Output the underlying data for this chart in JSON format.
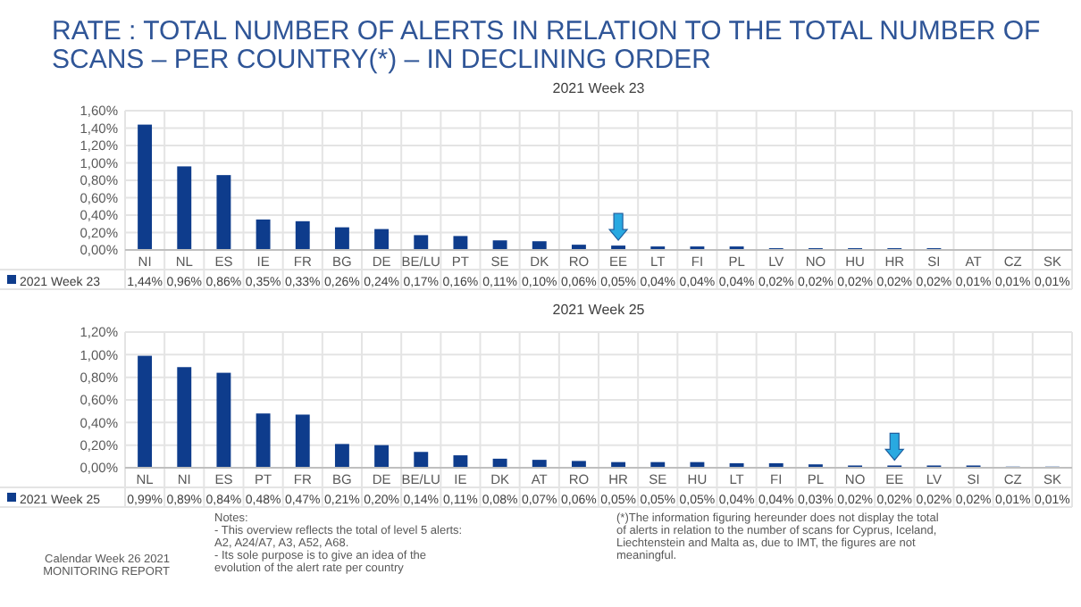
{
  "chart_data": [
    {
      "type": "bar",
      "title": "RATE : TOTAL NUMBER OF ALERTS IN RELATION TO THE TOTAL NUMBER OF SCANS – PER COUNTRY(*) – IN DECLINING ORDER",
      "subtitle": "2021 Week 23",
      "categories": [
        "NI",
        "NL",
        "ES",
        "IE",
        "FR",
        "BG",
        "DE",
        "BE/LU",
        "PT",
        "SE",
        "DK",
        "RO",
        "EE",
        "LT",
        "FI",
        "PL",
        "LV",
        "NO",
        "HU",
        "HR",
        "SI",
        "AT",
        "CZ",
        "SK"
      ],
      "series": [
        {
          "name": "2021 Week 23",
          "color": "#0e3c8c",
          "values": [
            1.44,
            0.96,
            0.86,
            0.35,
            0.33,
            0.26,
            0.24,
            0.17,
            0.16,
            0.11,
            0.1,
            0.06,
            0.05,
            0.04,
            0.04,
            0.04,
            0.02,
            0.02,
            0.02,
            0.02,
            0.02,
            0.01,
            0.01,
            0.01
          ],
          "value_labels": [
            "1,44%",
            "0,96%",
            "0,86%",
            "0,35%",
            "0,33%",
            "0,26%",
            "0,24%",
            "0,17%",
            "0,16%",
            "0,11%",
            "0,10%",
            "0,06%",
            "0,05%",
            "0,04%",
            "0,04%",
            "0,04%",
            "0,02%",
            "0,02%",
            "0,02%",
            "0,02%",
            "0,02%",
            "0,01%",
            "0,01%",
            "0,01%"
          ]
        }
      ],
      "ylim": [
        0,
        1.6
      ],
      "yticks": [
        {
          "value": 0,
          "label": "0,00%"
        },
        {
          "value": 0.2,
          "label": "0,20%"
        },
        {
          "value": 0.4,
          "label": "0,40%"
        },
        {
          "value": 0.6,
          "label": "0,60%"
        },
        {
          "value": 0.8,
          "label": "0,80%"
        },
        {
          "value": 1.0,
          "label": "1,00%"
        },
        {
          "value": 1.2,
          "label": "1,20%"
        },
        {
          "value": 1.4,
          "label": "1,40%"
        },
        {
          "value": 1.6,
          "label": "1,60%"
        }
      ],
      "grid": true,
      "legend": "bottom"
    },
    {
      "type": "bar",
      "title": "2021 Week 25",
      "categories": [
        "NL",
        "NI",
        "ES",
        "PT",
        "FR",
        "BG",
        "DE",
        "BE/LU",
        "IE",
        "DK",
        "AT",
        "RO",
        "HR",
        "SE",
        "HU",
        "LT",
        "FI",
        "PL",
        "NO",
        "EE",
        "LV",
        "SI",
        "CZ",
        "SK"
      ],
      "series": [
        {
          "name": "2021 Week 25",
          "color": "#0e3c8c",
          "values": [
            0.99,
            0.89,
            0.84,
            0.48,
            0.47,
            0.21,
            0.2,
            0.14,
            0.11,
            0.08,
            0.07,
            0.06,
            0.05,
            0.05,
            0.05,
            0.04,
            0.04,
            0.03,
            0.02,
            0.02,
            0.02,
            0.02,
            0.01,
            0.01
          ],
          "value_labels": [
            "0,99%",
            "0,89%",
            "0,84%",
            "0,48%",
            "0,47%",
            "0,21%",
            "0,20%",
            "0,14%",
            "0,11%",
            "0,08%",
            "0,07%",
            "0,06%",
            "0,05%",
            "0,05%",
            "0,05%",
            "0,04%",
            "0,04%",
            "0,03%",
            "0,02%",
            "0,02%",
            "0,02%",
            "0,02%",
            "0,01%",
            "0,01%"
          ]
        }
      ],
      "ylim": [
        0,
        1.2
      ],
      "yticks": [
        {
          "value": 0,
          "label": "0,00%"
        },
        {
          "value": 0.2,
          "label": "0,20%"
        },
        {
          "value": 0.4,
          "label": "0,40%"
        },
        {
          "value": 0.6,
          "label": "0,60%"
        },
        {
          "value": 0.8,
          "label": "0,80%"
        },
        {
          "value": 1.0,
          "label": "1,00%"
        },
        {
          "value": 1.2,
          "label": "1,20%"
        }
      ],
      "grid": true,
      "legend": "bottom",
      "annotations": [
        "Calendar Week 26 2021",
        "MONITORING REPORT",
        "Notes:",
        "-  This overview reflects the total of level 5 alerts: A2, A24/A7, A3, A52, A68.",
        "-  Its sole purpose is to give an idea of the evolution of the alert rate per country",
        "(*)The information figuring hereunder does not display the total of alerts in relation to the number of scans for Cyprus, Iceland, Liechtenstein and Malta as, due to IMT, the figures are not meaningful."
      ]
    }
  ]
}
